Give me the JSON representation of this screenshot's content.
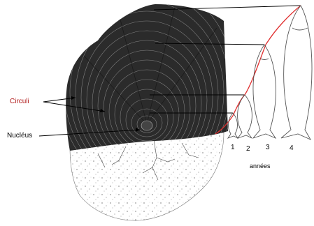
{
  "diagram": {
    "labels": {
      "circuli": "Circuli",
      "nucleus": "Nucléus",
      "years_axis": "années"
    },
    "years": [
      "1",
      "2",
      "3",
      "4"
    ],
    "colors": {
      "scale_dark": "#2b2b2b",
      "scale_light": "#f4f4f4",
      "growth_curve": "#e03030",
      "lines": "#000000",
      "fish_outline": "#555555"
    },
    "icons": {
      "scale": "fish-scale-illustration",
      "fish": "fish-outline-icon"
    }
  }
}
